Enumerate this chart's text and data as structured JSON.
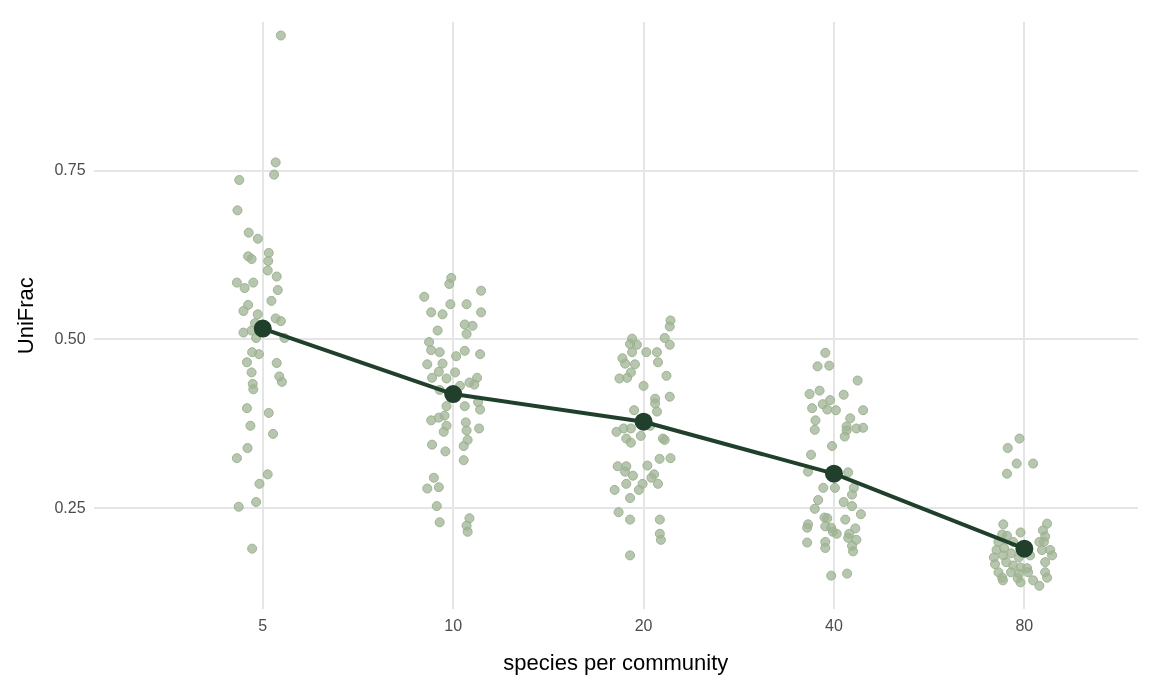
{
  "chart_data": {
    "type": "scatter",
    "xlabel": "species per community",
    "ylabel": "UniFrac",
    "log": "x",
    "grid": true,
    "legend": false,
    "marker": "circle",
    "xlim": [
      2.7,
      121
    ],
    "xticks": [
      5,
      10,
      20,
      40,
      80
    ],
    "ylim": [
      0.1,
      0.97
    ],
    "yticks": [
      {
        "value": 0.25,
        "label": "0.25"
      },
      {
        "value": 0.5,
        "label": "0.50"
      },
      {
        "value": 0.75,
        "label": "0.75"
      }
    ],
    "series": [
      {
        "color": "#9fb394",
        "x": [
          5.34,
          5.24,
          5.21,
          4.59,
          4.56,
          4.75,
          4.91,
          5.11,
          4.74,
          4.8,
          5.1,
          5.09,
          5.26,
          4.55,
          4.83,
          4.68,
          5.28,
          5.16,
          4.74,
          4.66,
          4.91,
          5.24,
          4.86,
          5.34,
          4.66,
          4.8,
          4.88,
          5.41,
          4.81,
          4.93,
          4.72,
          5.26,
          5.31,
          5.36,
          4.8,
          4.82,
          4.83,
          4.72,
          5.11,
          4.78,
          5.19,
          4.73,
          4.55,
          5.09,
          4.94,
          4.58,
          4.88,
          4.81,
          9.93,
          9.86,
          9.0,
          11.07,
          9.23,
          9.62,
          9.9,
          10.5,
          11.07,
          9.45,
          10.43,
          10.73,
          10.5,
          9.16,
          9.23,
          9.52,
          10.43,
          10.11,
          11.03,
          9.1,
          9.62,
          9.49,
          9.26,
          9.76,
          10.07,
          10.25,
          10.61,
          10.91,
          10.8,
          9.52,
          9.76,
          10.43,
          10.95,
          11.03,
          9.23,
          9.49,
          9.69,
          9.76,
          9.66,
          10.47,
          10.5,
          10.54,
          10.99,
          9.26,
          10.39,
          9.72,
          10.39,
          9.32,
          9.1,
          9.49,
          9.42,
          9.52,
          10.61,
          10.5,
          10.54,
          22.06,
          22.0,
          19.18,
          21.6,
          19.52,
          19.04,
          19.18,
          20.2,
          21.0,
          22.0,
          18.52,
          18.7,
          19.38,
          21.08,
          19.1,
          18.32,
          18.84,
          21.74,
          20.0,
          20.86,
          22.0,
          20.86,
          21.0,
          19.32,
          20.5,
          18.12,
          18.6,
          19.1,
          18.78,
          19.1,
          19.8,
          21.46,
          21.6,
          21.2,
          22.06,
          18.2,
          18.78,
          18.7,
          19.24,
          20.28,
          20.78,
          20.58,
          21.08,
          18.78,
          19.93,
          19.66,
          18.0,
          19.04,
          18.26,
          19.04,
          21.22,
          21.22,
          21.3,
          19.04,
          38.76,
          37.68,
          39.32,
          43.6,
          36.6,
          37.96,
          41.44,
          36.94,
          38.4,
          39.44,
          39.04,
          40.28,
          44.48,
          37.4,
          37.3,
          42.44,
          41.88,
          41.88,
          43.4,
          44.48,
          41.6,
          39.72,
          36.8,
          36.4,
          42.12,
          38.48,
          40.14,
          43.0,
          42.72,
          37.76,
          41.44,
          37.3,
          42.72,
          44.12,
          38.64,
          39.04,
          41.68,
          36.4,
          36.28,
          38.76,
          39.6,
          39.84,
          40.4,
          43.24,
          42.28,
          42.12,
          43.4,
          36.28,
          38.76,
          42.72,
          38.76,
          42.88,
          39.6,
          41.96,
          78.6,
          75.3,
          77.8,
          82.6,
          75.1,
          74.1,
          86.9,
          73.8,
          75.1,
          78.9,
          85.6,
          86.3,
          72.8,
          76.8,
          84.5,
          85.9,
          72.3,
          74.3,
          85.3,
          87.9,
          71.6,
          74.1,
          76.2,
          78.4,
          81.7,
          88.5,
          71.9,
          74.9,
          76.8,
          78.9,
          80.8,
          86.3,
          72.8,
          76.2,
          78.4,
          81.1,
          86.3,
          73.8,
          78.1,
          86.9,
          78.9,
          82.6,
          84.5,
          74.0
        ],
        "values": [
          0.95,
          0.762,
          0.744,
          0.736,
          0.691,
          0.658,
          0.649,
          0.628,
          0.623,
          0.619,
          0.616,
          0.602,
          0.593,
          0.584,
          0.584,
          0.576,
          0.573,
          0.557,
          0.551,
          0.542,
          0.537,
          0.531,
          0.524,
          0.527,
          0.51,
          0.513,
          0.502,
          0.502,
          0.481,
          0.478,
          0.466,
          0.465,
          0.445,
          0.437,
          0.451,
          0.434,
          0.426,
          0.398,
          0.391,
          0.372,
          0.36,
          0.339,
          0.324,
          0.3,
          0.286,
          0.252,
          0.259,
          0.19,
          0.591,
          0.582,
          0.563,
          0.572,
          0.54,
          0.537,
          0.552,
          0.552,
          0.54,
          0.513,
          0.522,
          0.52,
          0.508,
          0.496,
          0.484,
          0.481,
          0.483,
          0.475,
          0.478,
          0.463,
          0.464,
          0.452,
          0.443,
          0.442,
          0.451,
          0.431,
          0.436,
          0.443,
          0.433,
          0.425,
          0.401,
          0.401,
          0.407,
          0.396,
          0.38,
          0.384,
          0.387,
          0.372,
          0.363,
          0.377,
          0.365,
          0.351,
          0.368,
          0.344,
          0.342,
          0.334,
          0.321,
          0.295,
          0.279,
          0.281,
          0.253,
          0.229,
          0.235,
          0.224,
          0.215,
          0.528,
          0.519,
          0.501,
          0.502,
          0.492,
          0.493,
          0.481,
          0.481,
          0.481,
          0.492,
          0.472,
          0.464,
          0.463,
          0.466,
          0.451,
          0.442,
          0.443,
          0.446,
          0.431,
          0.412,
          0.415,
          0.405,
          0.393,
          0.395,
          0.372,
          0.363,
          0.368,
          0.368,
          0.353,
          0.347,
          0.357,
          0.353,
          0.351,
          0.323,
          0.324,
          0.312,
          0.312,
          0.304,
          0.298,
          0.313,
          0.3,
          0.295,
          0.286,
          0.286,
          0.286,
          0.277,
          0.277,
          0.265,
          0.244,
          0.233,
          0.233,
          0.212,
          0.203,
          0.18,
          0.48,
          0.46,
          0.461,
          0.439,
          0.419,
          0.424,
          0.418,
          0.398,
          0.404,
          0.41,
          0.396,
          0.395,
          0.395,
          0.38,
          0.366,
          0.383,
          0.371,
          0.365,
          0.368,
          0.369,
          0.356,
          0.342,
          0.329,
          0.304,
          0.303,
          0.28,
          0.28,
          0.28,
          0.27,
          0.262,
          0.259,
          0.249,
          0.253,
          0.241,
          0.236,
          0.235,
          0.233,
          0.226,
          0.221,
          0.223,
          0.221,
          0.215,
          0.212,
          0.22,
          0.212,
          0.206,
          0.203,
          0.199,
          0.2,
          0.194,
          0.191,
          0.186,
          0.15,
          0.153,
          0.353,
          0.339,
          0.316,
          0.316,
          0.301,
          0.226,
          0.227,
          0.211,
          0.209,
          0.214,
          0.217,
          0.208,
          0.2,
          0.2,
          0.2,
          0.2,
          0.188,
          0.191,
          0.188,
          0.188,
          0.177,
          0.18,
          0.183,
          0.177,
          0.18,
          0.18,
          0.167,
          0.17,
          0.165,
          0.162,
          0.161,
          0.17,
          0.155,
          0.155,
          0.153,
          0.155,
          0.155,
          0.147,
          0.146,
          0.147,
          0.14,
          0.143,
          0.135,
          0.143
        ]
      },
      {
        "type": "line",
        "color": "#21402b",
        "x": [
          5,
          10,
          20,
          40,
          80
        ],
        "values": [
          0.516,
          0.419,
          0.378,
          0.301,
          0.19
        ]
      }
    ]
  }
}
